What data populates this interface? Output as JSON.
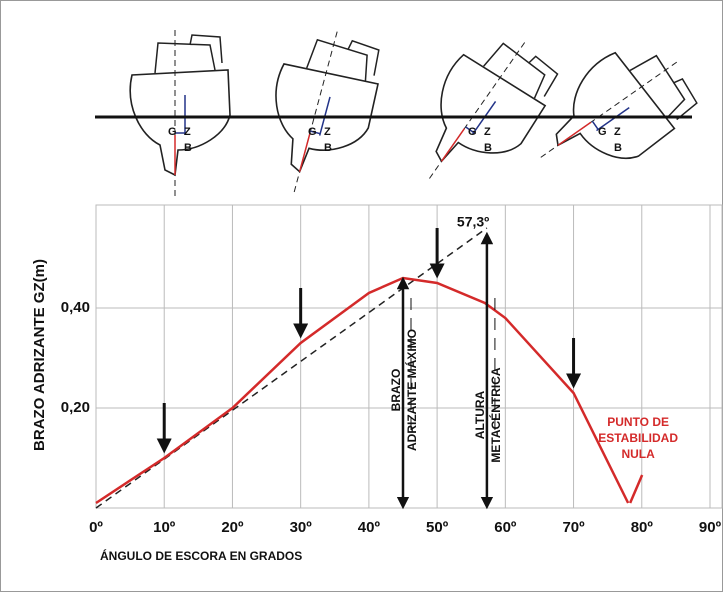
{
  "chart_data": {
    "type": "line",
    "y_label": "BRAZO ADRIZANTE GZ(m)",
    "x_label": "ÁNGULO DE ESCORA EN GRADOS",
    "x": [
      0,
      10,
      20,
      30,
      40,
      45,
      50,
      57,
      60,
      70,
      78
    ],
    "series": [
      {
        "color": "#d42a2a",
        "values": [
          0.01,
          0.1,
          0.2,
          0.33,
          0.43,
          0.46,
          0.45,
          0.41,
          0.38,
          0.23,
          0.01
        ]
      }
    ],
    "tangent": {
      "x": [
        0,
        57.3
      ],
      "values": [
        0,
        0.56
      ],
      "label": "57,3º"
    },
    "xlim": [
      0,
      90
    ],
    "xticks": [
      {
        "value": 0,
        "label": "0º"
      },
      {
        "value": 10,
        "label": "10º"
      },
      {
        "value": 20,
        "label": "20º"
      },
      {
        "value": 30,
        "label": "30º"
      },
      {
        "value": 40,
        "label": "40º"
      },
      {
        "value": 50,
        "label": "50º"
      },
      {
        "value": 60,
        "label": "60º"
      },
      {
        "value": 70,
        "label": "70º"
      },
      {
        "value": 80,
        "label": "80º"
      },
      {
        "value": 90,
        "label": "90º"
      }
    ],
    "ylim": [
      0,
      0.6
    ],
    "yticks": [
      {
        "value": 0.2,
        "label": "0,20"
      },
      {
        "value": 0.4,
        "label": "0,40"
      }
    ],
    "grid": true,
    "annotations": [
      {
        "x": 45,
        "lines": [
          "BRAZO",
          "ADRIZANTE MÁXIMO"
        ]
      },
      {
        "x": 57.3,
        "lines": [
          "ALTURA",
          "METACÉNTRICA"
        ]
      }
    ],
    "vanishing_point": {
      "x": 78,
      "lines": [
        "PUNTO DE",
        "ESTABILIDAD",
        "NULA"
      ]
    },
    "ship_labels": [
      "G",
      "Z",
      "B"
    ]
  }
}
